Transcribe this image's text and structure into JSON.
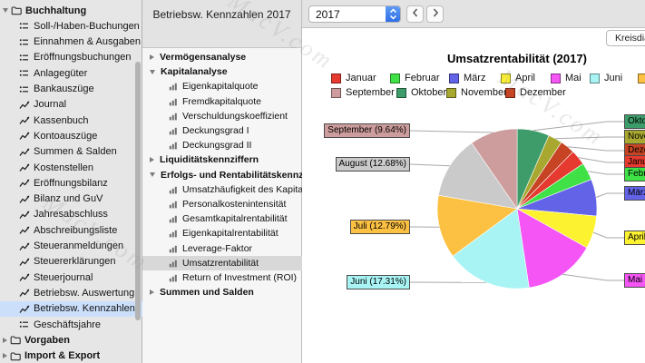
{
  "app": {
    "watermark": "MacV.com"
  },
  "sidebar": {
    "items": [
      {
        "label": "Buchhaltung",
        "icon": "folder",
        "disclosure": "expanded",
        "bold": true
      },
      {
        "label": "Soll-/Haben-Buchungen",
        "icon": "list"
      },
      {
        "label": "Einnahmen & Ausgaben",
        "icon": "list"
      },
      {
        "label": "Eröffnungsbuchungen",
        "icon": "list"
      },
      {
        "label": "Anlagegüter",
        "icon": "list"
      },
      {
        "label": "Bankauszüge",
        "icon": "list"
      },
      {
        "label": "Journal",
        "icon": "chart"
      },
      {
        "label": "Kassenbuch",
        "icon": "chart"
      },
      {
        "label": "Kontoauszüge",
        "icon": "chart"
      },
      {
        "label": "Summen & Salden",
        "icon": "chart"
      },
      {
        "label": "Kostenstellen",
        "icon": "chart"
      },
      {
        "label": "Eröffnungsbilanz",
        "icon": "chart"
      },
      {
        "label": "Bilanz und GuV",
        "icon": "chart"
      },
      {
        "label": "Jahresabschluss",
        "icon": "chart"
      },
      {
        "label": "Abschreibungsliste",
        "icon": "chart"
      },
      {
        "label": "Steueranmeldungen",
        "icon": "chart"
      },
      {
        "label": "Steuererklärungen",
        "icon": "chart"
      },
      {
        "label": "Steuerjournal",
        "icon": "chart"
      },
      {
        "label": "Betriebsw. Auswertung",
        "icon": "chart"
      },
      {
        "label": "Betriebsw. Kennzahlen",
        "icon": "chart",
        "selected": true
      },
      {
        "label": "Geschäftsjahre",
        "icon": "list"
      },
      {
        "label": "Vorgaben",
        "icon": "folder",
        "disclosure": "collapsed",
        "bold": true
      },
      {
        "label": "Import & Export",
        "icon": "folder",
        "disclosure": "collapsed",
        "bold": true
      }
    ]
  },
  "topbar": {
    "title": "Betriebsw. Kennzahlen 2017",
    "year_value": "2017"
  },
  "tree": {
    "items": [
      {
        "label": "Vermögensanalyse",
        "level": 0,
        "disclosure": "collapsed"
      },
      {
        "label": "Kapitalanalyse",
        "level": 0,
        "disclosure": "expanded"
      },
      {
        "label": "Eigenkapitalquote",
        "level": 1
      },
      {
        "label": "Fremdkapitalquote",
        "level": 1
      },
      {
        "label": "Verschuldungskoeffizient",
        "level": 1
      },
      {
        "label": "Deckungsgrad I",
        "level": 1
      },
      {
        "label": "Deckungsgrad II",
        "level": 1
      },
      {
        "label": "Liquiditätskennziffern",
        "level": 0,
        "disclosure": "collapsed"
      },
      {
        "label": "Erfolgs- und Rentabilitätskennz...",
        "level": 0,
        "disclosure": "expanded"
      },
      {
        "label": "Umsatzhäufigkeit des Kapitals",
        "level": 1
      },
      {
        "label": "Personalkostenintensität",
        "level": 1
      },
      {
        "label": "Gesamtkapitalrentabilität",
        "level": 1
      },
      {
        "label": "Eigenkapitalrentabilität",
        "level": 1
      },
      {
        "label": "Leverage-Faktor",
        "level": 1
      },
      {
        "label": "Umsatzrentabilität",
        "level": 1,
        "selected": true
      },
      {
        "label": "Return of Investment (ROI)",
        "level": 1
      },
      {
        "label": "Summen und Salden",
        "level": 0,
        "disclosure": "collapsed"
      }
    ]
  },
  "chart_panel": {
    "diagram_button_label": "Kreisdiagramm"
  },
  "chart_data": {
    "type": "pie",
    "title": "Umsatzrentabilität (2017)",
    "unit": "%",
    "months": [
      {
        "name": "Januar",
        "value": 3.12,
        "color": "#e6392f"
      },
      {
        "name": "Februar",
        "value": 3.53,
        "color": "#3fe146"
      },
      {
        "name": "März",
        "value": 7.46,
        "color": "#6363e8"
      },
      {
        "name": "April",
        "value": 6.65,
        "color": "#fdf230"
      },
      {
        "name": "Mai",
        "value": 14.47,
        "color": "#f455f4"
      },
      {
        "name": "Juni",
        "value": 17.31,
        "color": "#a8f4f4"
      },
      {
        "name": "Juli",
        "value": 12.79,
        "color": "#fcc143"
      },
      {
        "name": "August",
        "value": 12.68,
        "color": "#cacaca"
      },
      {
        "name": "September",
        "value": 9.64,
        "color": "#cd9c9c"
      },
      {
        "name": "Oktober",
        "value": 6.52,
        "color": "#3d9c6a"
      },
      {
        "name": "November",
        "value": 2.85,
        "color": "#a8a830"
      },
      {
        "name": "Dezember",
        "value": 2.99,
        "color": "#c64323"
      }
    ],
    "slice_order": [
      "Oktober",
      "November",
      "Dezember",
      "Januar",
      "Februar",
      "März",
      "April",
      "Mai",
      "Juni",
      "Juli",
      "August",
      "September"
    ],
    "legend_row1": [
      "Januar",
      "Februar",
      "März",
      "April",
      "Mai",
      "Juni",
      "Juli"
    ],
    "legend_row2": [
      "September",
      "Oktober",
      "November",
      "Dezember"
    ],
    "callout_left": [
      "September",
      "August",
      "Juli",
      "Juni"
    ],
    "callout_right": [
      "Oktober",
      "November",
      "Dezember",
      "Januar",
      "Februar",
      "März",
      "April",
      "Mai"
    ],
    "label_format": "{name} ({value}%)",
    "legend_position": "top",
    "start_angle_deg": 0
  }
}
